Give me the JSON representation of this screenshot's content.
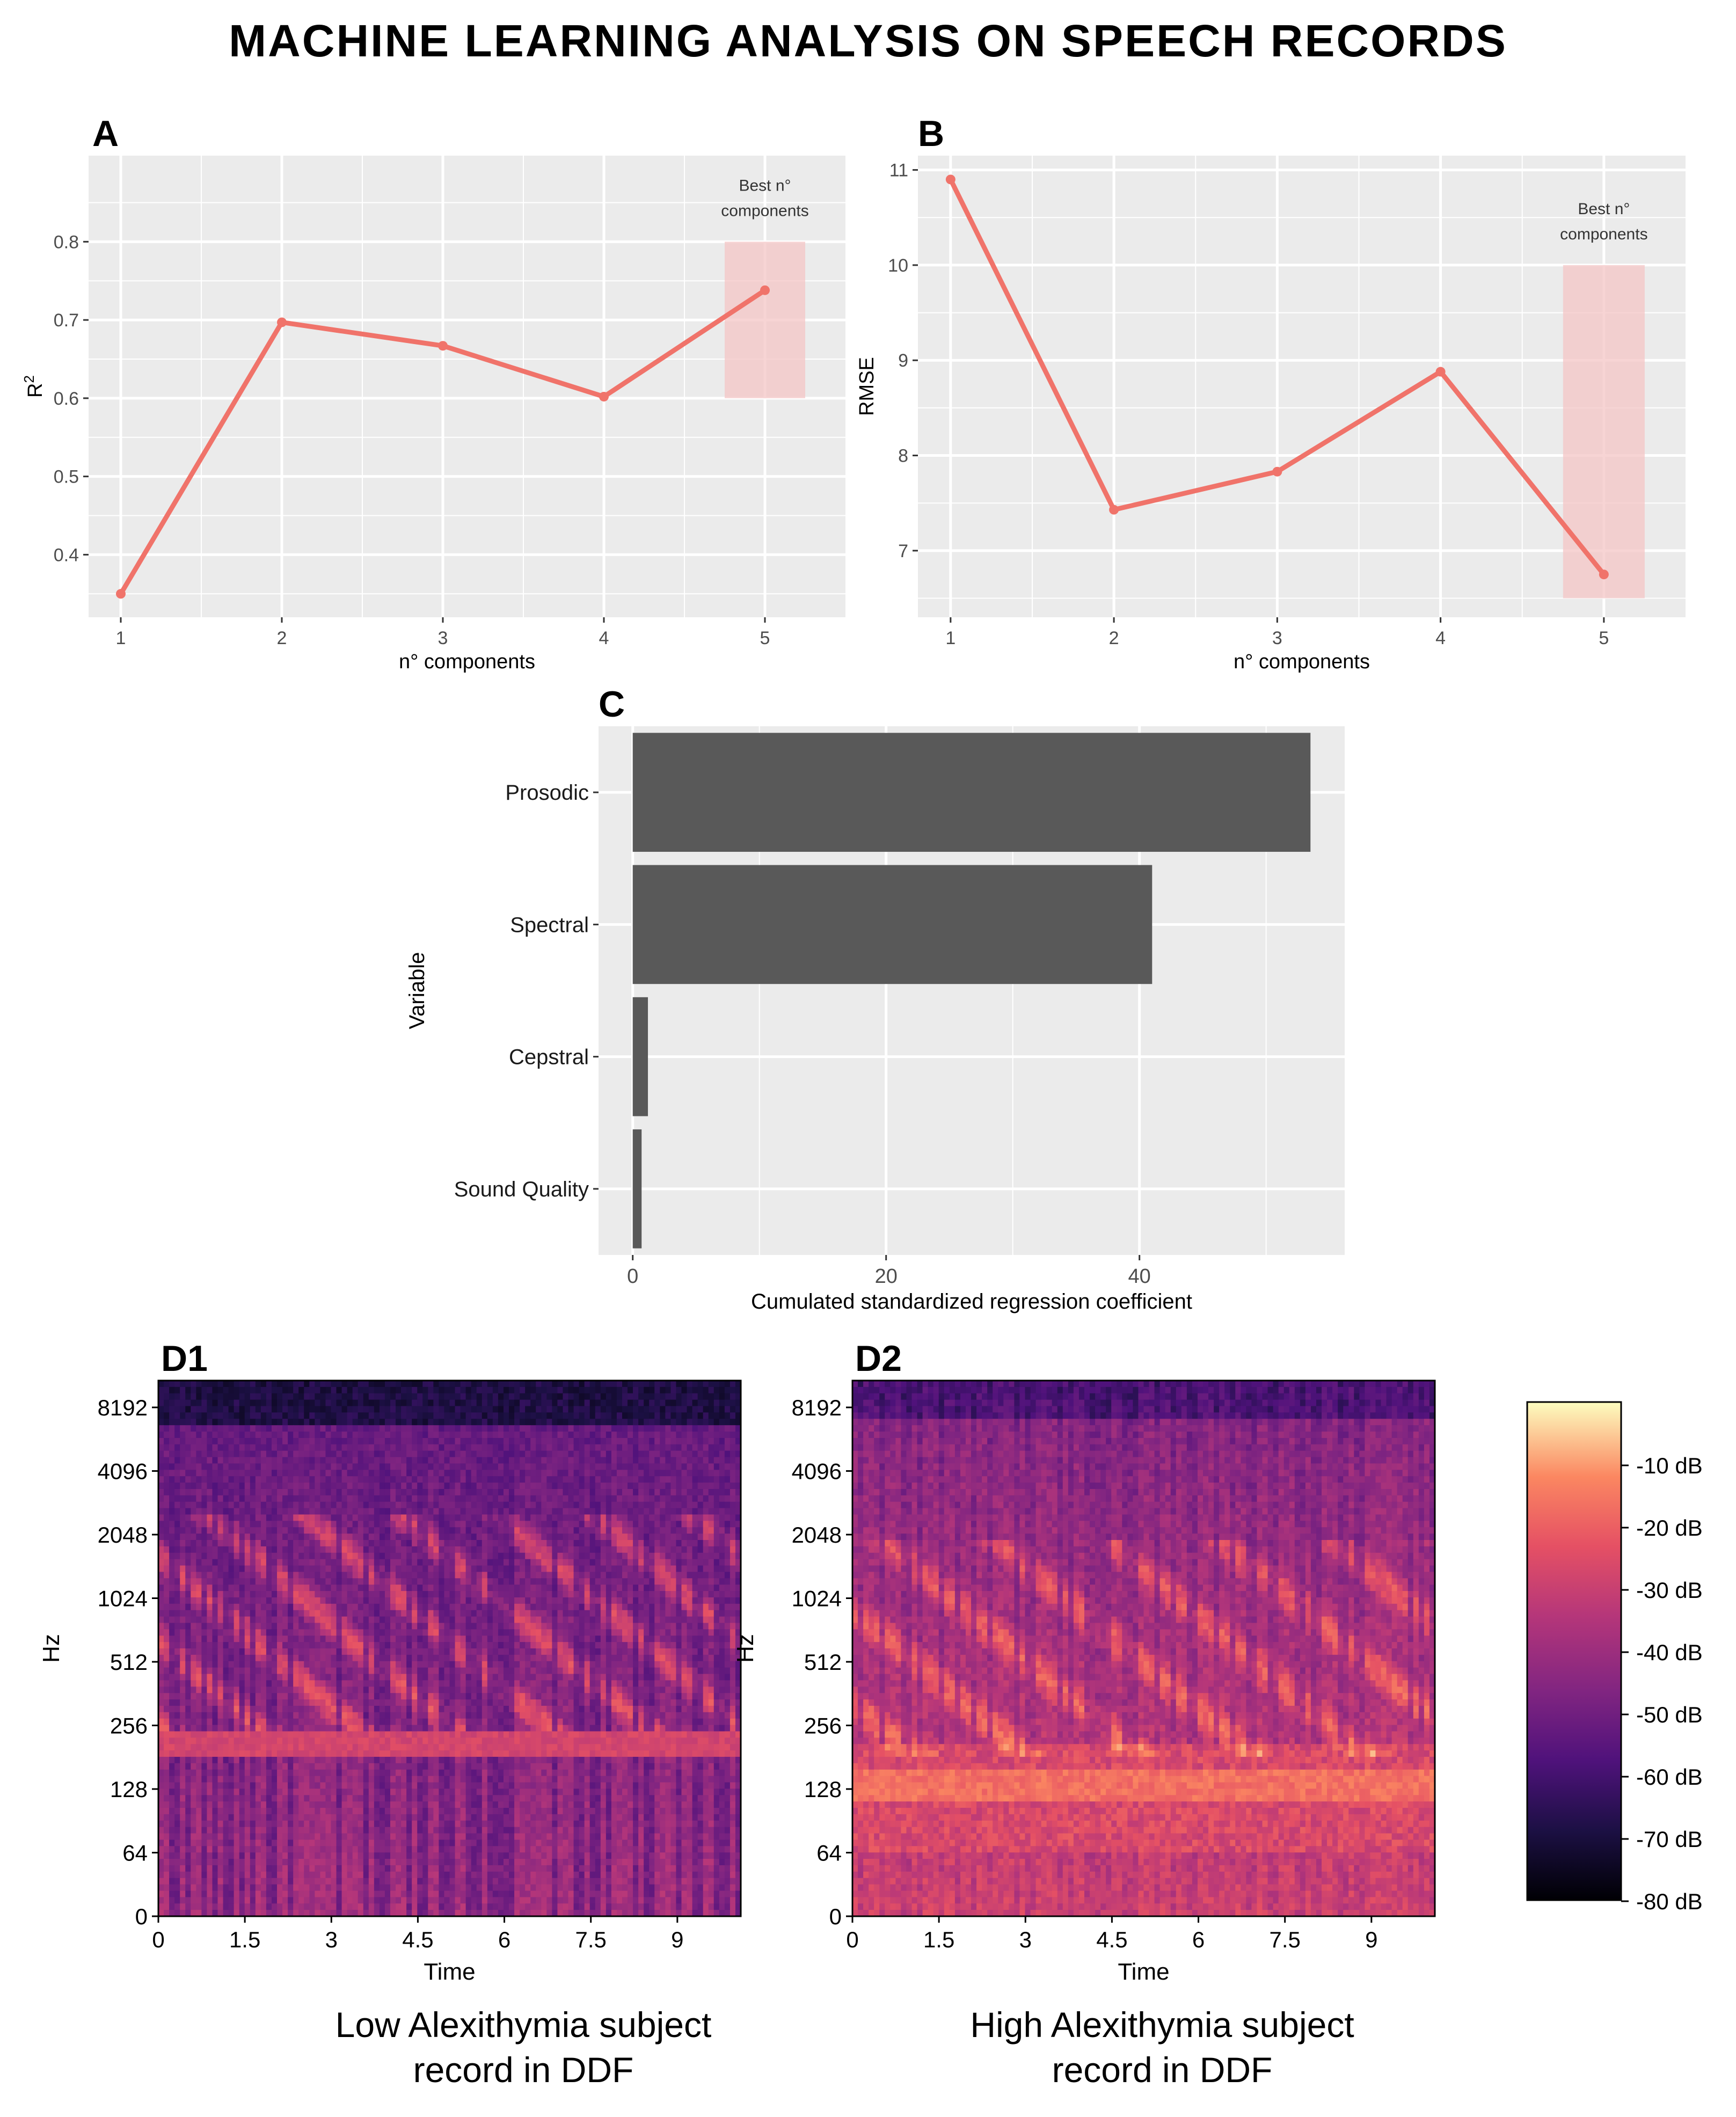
{
  "title": "MACHINE LEARNING ANALYSIS ON SPEECH RECORDS",
  "colors": {
    "panel_bg": "#EBEBEB",
    "grid": "#FFFFFF",
    "line": "#F0736A",
    "highlight": "#F4C6C6",
    "bar": "#595959"
  },
  "chart_data": [
    {
      "panel": "A",
      "type": "line",
      "x": [
        1,
        2,
        3,
        4,
        5
      ],
      "y": [
        0.35,
        0.697,
        0.667,
        0.602,
        0.738
      ],
      "xlabel": "n° components",
      "ylabel": "R",
      "ylabel_sup": "2",
      "yticks": [
        0.4,
        0.5,
        0.6,
        0.7,
        0.8
      ],
      "xticks": [
        1,
        2,
        3,
        4,
        5
      ],
      "xlim": [
        0.8,
        5.5
      ],
      "ylim": [
        0.32,
        0.91
      ],
      "highlight": {
        "x": [
          4.75,
          5.25
        ],
        "y": [
          0.6,
          0.8
        ],
        "label": [
          "Best n°",
          "components"
        ]
      }
    },
    {
      "panel": "B",
      "type": "line",
      "x": [
        1,
        2,
        3,
        4,
        5
      ],
      "y": [
        10.9,
        7.43,
        7.83,
        8.88,
        6.75
      ],
      "xlabel": "n° components",
      "ylabel": "RMSE",
      "yticks": [
        7,
        8,
        9,
        10,
        11
      ],
      "xticks": [
        1,
        2,
        3,
        4,
        5
      ],
      "xlim": [
        0.8,
        5.5
      ],
      "ylim": [
        6.3,
        11.15
      ],
      "highlight": {
        "x": [
          4.75,
          5.25
        ],
        "y": [
          6.5,
          10.0
        ],
        "label": [
          "Best n°",
          "components"
        ]
      }
    },
    {
      "panel": "C",
      "type": "bar",
      "orientation": "horizontal",
      "categories": [
        "Prosodic",
        "Spectral",
        "Cepstral",
        "Sound Quality"
      ],
      "values": [
        53.5,
        41.0,
        1.2,
        0.7
      ],
      "xlabel": "Cumulated standardized regression coefficient",
      "ylabel": "Variable",
      "xticks": [
        0,
        20,
        40
      ],
      "xlim": [
        -2.7,
        56.2
      ]
    },
    {
      "panel": "D1",
      "type": "heatmap",
      "subtype": "spectrogram",
      "xlabel": "Time",
      "ylabel": "Hz",
      "xticks": [
        "0",
        "1.5",
        "3",
        "4.5",
        "6",
        "7.5",
        "9"
      ],
      "yticks": [
        "0",
        "64",
        "128",
        "256",
        "512",
        "1024",
        "2048",
        "4096",
        "8192"
      ],
      "caption": [
        "Low Alexithymia subject",
        "record in DDF"
      ]
    },
    {
      "panel": "D2",
      "type": "heatmap",
      "subtype": "spectrogram",
      "xlabel": "Time",
      "ylabel": "Hz",
      "xticks": [
        "0",
        "1.5",
        "3",
        "4.5",
        "6",
        "7.5",
        "9"
      ],
      "yticks": [
        "0",
        "64",
        "128",
        "256",
        "512",
        "1024",
        "2048",
        "4096",
        "8192"
      ],
      "caption": [
        "High Alexithymia subject",
        "record in DDF"
      ]
    },
    {
      "panel": "colorbar",
      "type": "colorbar",
      "ticks": [
        "-10 dB",
        "-20 dB",
        "-30 dB",
        "-40 dB",
        "-50 dB",
        "-60 dB",
        "-70 dB",
        "-80 dB"
      ]
    }
  ]
}
